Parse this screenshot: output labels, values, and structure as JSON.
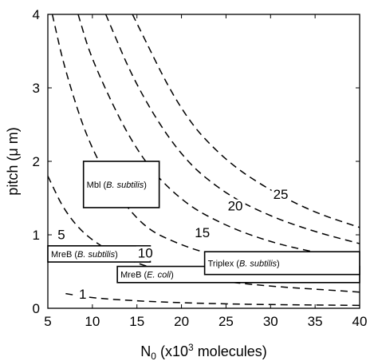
{
  "chart_data": {
    "type": "line",
    "xlabel": "N",
    "xlabel_sub": "0",
    "xlabel_rest": " (x10",
    "xlabel_sup": "3",
    "xlabel_end": " molecules)",
    "ylabel": "pitch (μ m)",
    "xlim": [
      5,
      40
    ],
    "ylim": [
      0,
      4
    ],
    "xticks": [
      5,
      10,
      15,
      20,
      25,
      30,
      35,
      40
    ],
    "yticks": [
      0,
      1,
      2,
      3,
      4
    ],
    "contours": [
      {
        "label": "1",
        "label_at": [
          9.3,
          0.14
        ],
        "points": [
          [
            7,
            0.2
          ],
          [
            10,
            0.14
          ],
          [
            15,
            0.1
          ],
          [
            20,
            0.075
          ],
          [
            25,
            0.06
          ],
          [
            30,
            0.05
          ],
          [
            35,
            0.045
          ],
          [
            40,
            0.04
          ]
        ]
      },
      {
        "label": "5",
        "label_at": [
          6.9,
          0.95
        ],
        "points": [
          [
            5,
            1.8
          ],
          [
            7,
            1.29
          ],
          [
            10,
            0.9
          ],
          [
            15,
            0.6
          ],
          [
            20,
            0.45
          ],
          [
            25,
            0.36
          ],
          [
            30,
            0.3
          ],
          [
            35,
            0.26
          ],
          [
            40,
            0.22
          ]
        ]
      },
      {
        "label": "10",
        "label_at": [
          15.9,
          0.7
        ],
        "points": [
          [
            5.5,
            4
          ],
          [
            7,
            3.2
          ],
          [
            10,
            2.1
          ],
          [
            15,
            1.15
          ],
          [
            20,
            0.85
          ],
          [
            25,
            0.68
          ],
          [
            30,
            0.57
          ],
          [
            35,
            0.49
          ],
          [
            40,
            0.43
          ]
        ]
      },
      {
        "label": "15",
        "label_at": [
          22.3,
          0.98
        ],
        "points": [
          [
            8.4,
            4
          ],
          [
            10,
            3.35
          ],
          [
            15,
            2.1
          ],
          [
            20,
            1.45
          ],
          [
            25,
            1.12
          ],
          [
            30,
            0.9
          ],
          [
            35,
            0.76
          ],
          [
            40,
            0.65
          ]
        ]
      },
      {
        "label": "20",
        "label_at": [
          26,
          1.34
        ],
        "points": [
          [
            11.5,
            4
          ],
          [
            15,
            3.0
          ],
          [
            20,
            2.05
          ],
          [
            25,
            1.55
          ],
          [
            30,
            1.25
          ],
          [
            35,
            1.04
          ],
          [
            40,
            0.88
          ]
        ]
      },
      {
        "label": "25",
        "label_at": [
          31.1,
          1.5
        ],
        "points": [
          [
            14.5,
            4
          ],
          [
            20,
            2.65
          ],
          [
            25,
            2.0
          ],
          [
            30,
            1.6
          ],
          [
            35,
            1.3
          ],
          [
            40,
            1.1
          ]
        ]
      }
    ],
    "boxes": [
      {
        "label": "Mbl",
        "label_italic": "B. subtilis",
        "x": [
          9,
          17.5
        ],
        "y": [
          1.37,
          2.0
        ]
      },
      {
        "label": "MreB",
        "label_italic": "B. subtilis",
        "x": [
          5,
          16.5
        ],
        "y": [
          0.63,
          0.85
        ]
      },
      {
        "label": "MreB",
        "label_italic": "E. coli",
        "x": [
          12.8,
          40
        ],
        "y": [
          0.35,
          0.57
        ]
      },
      {
        "label": "Triplex",
        "label_italic": "B. subtilis",
        "x": [
          22.6,
          40
        ],
        "y": [
          0.46,
          0.77
        ]
      }
    ]
  }
}
